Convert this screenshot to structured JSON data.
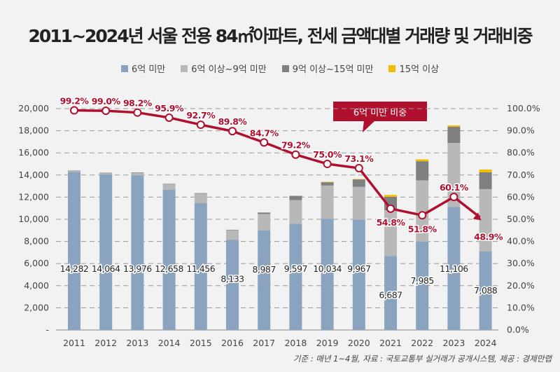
{
  "title": "2011~2024년 서울 전용 84㎡아파트, 전세 금액대별 거래량 및 거래비중",
  "footer": "기준 : 매년 1~4월, 자료 : 국토교통부 실거래가 공개시스템, 제공 : 경제만랩",
  "callout": "6억 미만 비중",
  "chart_data": {
    "type": "bar",
    "stacked": true,
    "categories": [
      "2011",
      "2012",
      "2013",
      "2014",
      "2015",
      "2016",
      "2017",
      "2018",
      "2019",
      "2020",
      "2021",
      "2022",
      "2023",
      "2024"
    ],
    "series": [
      {
        "name": "6억 미만",
        "color": "#8aa4c0",
        "values": [
          14282,
          14064,
          13976,
          12658,
          11456,
          8133,
          8987,
          9597,
          10034,
          9967,
          6687,
          7985,
          11106,
          7088
        ],
        "labels": [
          "14,282",
          "14,064",
          "13,976",
          "12,658",
          "11,456",
          "8,133",
          "8,987",
          "9,597",
          "10,034",
          "9,967",
          "6,687",
          "7,985",
          "11,106",
          "7,088"
        ]
      },
      {
        "name": "6억 이상~9억 미만",
        "color": "#b8b8b8",
        "values": [
          105,
          132,
          246,
          531,
          892,
          904,
          1493,
          2140,
          3015,
          2968,
          4123,
          5531,
          5790,
          5639
        ]
      },
      {
        "name": "9억 이상~15억 미만",
        "color": "#7f7f7f",
        "values": [
          10,
          10,
          10,
          10,
          10,
          20,
          130,
          380,
          320,
          670,
          1222,
          1728,
          1456,
          1518
        ]
      },
      {
        "name": "15억 이상",
        "color": "#f5bd00",
        "values": [
          0,
          0,
          0,
          0,
          0,
          0,
          0,
          0,
          10,
          30,
          171,
          171,
          127,
          250
        ]
      }
    ],
    "line": {
      "name": "6억 미만 비중",
      "color": "#b0102e",
      "values": [
        99.2,
        99.0,
        98.2,
        95.9,
        92.7,
        89.8,
        84.7,
        79.2,
        75.0,
        73.1,
        54.8,
        51.8,
        60.1,
        48.9
      ],
      "labels": [
        "99.2%",
        "99.0%",
        "98.2%",
        "95.9%",
        "92.7%",
        "89.8%",
        "84.7%",
        "79.2%",
        "75.0%",
        "73.1%",
        "54.8%",
        "51.8%",
        "60.1%",
        "48.9%"
      ]
    },
    "y_left": {
      "range": [
        0,
        20000
      ],
      "ticks": [
        "-",
        "2,000",
        "4,000",
        "6,000",
        "8,000",
        "10,000",
        "12,000",
        "14,000",
        "16,000",
        "18,000",
        "20,000"
      ]
    },
    "y_right": {
      "range": [
        0,
        100
      ],
      "ticks": [
        "0.0%",
        "10.0%",
        "20.0%",
        "30.0%",
        "40.0%",
        "50.0%",
        "60.0%",
        "70.0%",
        "80.0%",
        "90.0%",
        "100.0%"
      ]
    },
    "grid": true,
    "legend": "top"
  }
}
